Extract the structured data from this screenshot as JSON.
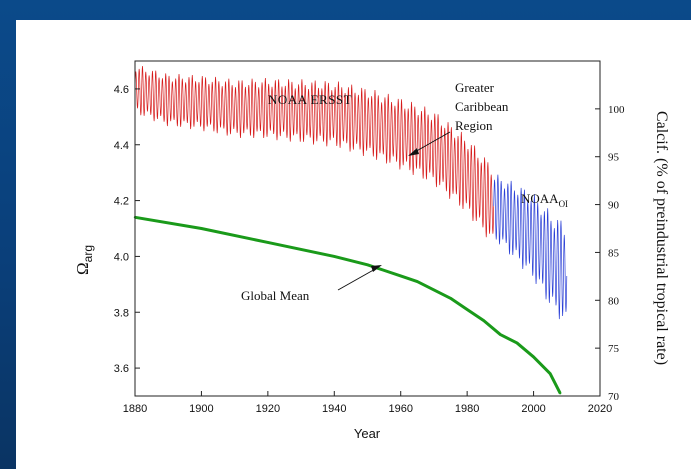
{
  "chart_data": {
    "type": "line",
    "xlabel": "Year",
    "ylabel_main": "Ω",
    "ylabel_sub": "arg",
    "ylabel_right": "Calcif. (% of preindustrial tropical rate)",
    "xlim": [
      1880,
      2020
    ],
    "ylim": [
      3.5,
      4.7
    ],
    "y2lim": [
      70,
      105
    ],
    "x_ticks": [
      1880,
      1900,
      1920,
      1940,
      1960,
      1980,
      2000,
      2020
    ],
    "y_ticks": [
      3.6,
      3.8,
      4.0,
      4.2,
      4.4,
      4.6
    ],
    "y2_ticks": [
      70,
      75,
      80,
      85,
      90,
      95,
      100
    ],
    "grid": false,
    "series": [
      {
        "name": "Global Mean",
        "color": "#1a9a1a",
        "x": [
          1880,
          1900,
          1920,
          1940,
          1950,
          1955,
          1960,
          1965,
          1970,
          1975,
          1980,
          1985,
          1990,
          1995,
          2000,
          2005,
          2008
        ],
        "y": [
          4.14,
          4.1,
          4.05,
          4.0,
          3.97,
          3.95,
          3.93,
          3.91,
          3.88,
          3.85,
          3.81,
          3.77,
          3.72,
          3.69,
          3.64,
          3.58,
          3.51
        ]
      },
      {
        "name": "NOAA ERSST",
        "color": "#d61a1a",
        "x": [
          1880,
          1890,
          1900,
          1910,
          1920,
          1930,
          1940,
          1950,
          1960,
          1970,
          1980,
          1988
        ],
        "y_mean": [
          4.6,
          4.56,
          4.55,
          4.53,
          4.53,
          4.52,
          4.51,
          4.48,
          4.44,
          4.39,
          4.29,
          4.18
        ],
        "amplitude": 0.09
      },
      {
        "name": "NOAA",
        "name_sub": "OI",
        "color": "#2a3fd6",
        "x": [
          1988,
          1995,
          2000,
          2005,
          2010
        ],
        "y_mean": [
          4.18,
          4.12,
          4.07,
          3.99,
          3.93
        ],
        "amplitude": 0.12
      }
    ],
    "annotations": [
      {
        "text": "NOAA ERSST"
      },
      {
        "text_lines": [
          "Greater",
          "Caribbean",
          "Region"
        ]
      },
      {
        "text": "Global Mean"
      }
    ]
  }
}
